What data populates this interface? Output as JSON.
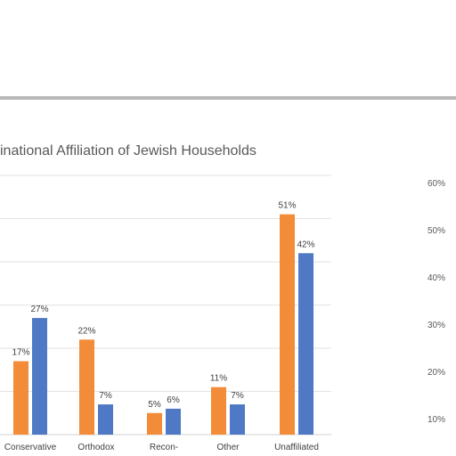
{
  "chart_data": [
    {
      "type": "bar",
      "title": "inational Affiliation of Jewish Households",
      "categories": [
        "Conservative",
        "Orthodox",
        "Recon-",
        "Other",
        "Unaffiliated"
      ],
      "series": [
        {
          "values": [
            17,
            22,
            5,
            11,
            51
          ],
          "color": "#f28c38"
        },
        {
          "values": [
            27,
            7,
            6,
            7,
            42
          ],
          "color": "#4f79c4"
        }
      ],
      "value_labels": [
        [
          "17%",
          "22%",
          "5%",
          "11%",
          "51%"
        ],
        [
          "27%",
          "7%",
          "6%",
          "7%",
          "42%"
        ]
      ],
      "ylim": [
        0,
        60
      ],
      "grid": true,
      "legend": "none"
    },
    {
      "type": "bar",
      "yticks": [
        "60%",
        "50%",
        "40%",
        "30%",
        "20%",
        "10%"
      ],
      "ylim": [
        0,
        60
      ],
      "grid": false
    }
  ]
}
